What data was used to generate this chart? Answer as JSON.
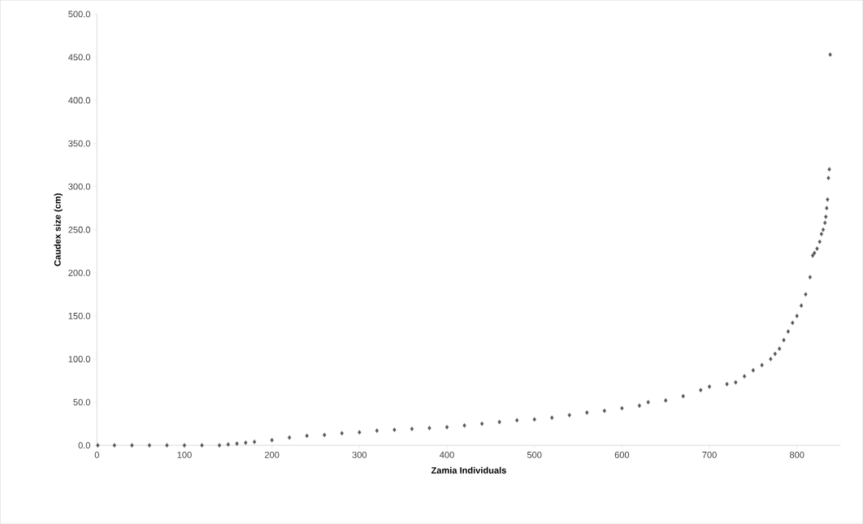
{
  "chart_data": {
    "type": "scatter",
    "xlabel": "Zamia Individuals",
    "ylabel": "Caudex size (cm)",
    "xlim": [
      0,
      850
    ],
    "xticks": [
      0,
      100,
      200,
      300,
      400,
      500,
      600,
      700,
      800
    ],
    "ylim": [
      0,
      500
    ],
    "yticks": [
      {
        "value": 0,
        "label": "0.0"
      },
      {
        "value": 50,
        "label": "50.0"
      },
      {
        "value": 100,
        "label": "100.0"
      },
      {
        "value": 150,
        "label": "150.0"
      },
      {
        "value": 200,
        "label": "200.0"
      },
      {
        "value": 250,
        "label": "250.0"
      },
      {
        "value": 300,
        "label": "300.0"
      },
      {
        "value": 350,
        "label": "350.0"
      },
      {
        "value": 400,
        "label": "400.0"
      },
      {
        "value": 450,
        "label": "450.0"
      },
      {
        "value": 500,
        "label": "500.0"
      }
    ],
    "marker": "diamond",
    "grid": false,
    "series": [
      {
        "color": "#595959",
        "x": [
          1,
          20,
          40,
          60,
          80,
          100,
          120,
          140,
          150,
          160,
          170,
          180,
          200,
          220,
          240,
          260,
          280,
          300,
          320,
          340,
          360,
          380,
          400,
          420,
          440,
          460,
          480,
          500,
          520,
          540,
          560,
          580,
          600,
          620,
          630,
          650,
          670,
          690,
          700,
          720,
          730,
          740,
          750,
          760,
          770,
          775,
          780,
          785,
          790,
          795,
          800,
          805,
          810,
          815,
          818,
          820,
          823,
          826,
          828,
          830,
          832,
          833,
          834,
          835,
          836,
          837,
          838
        ],
        "values": [
          0,
          0,
          0,
          0,
          0,
          0,
          0,
          0,
          1,
          2,
          3,
          4,
          6,
          9,
          11,
          12,
          14,
          15,
          17,
          18,
          19,
          20,
          21,
          23,
          25,
          27,
          29,
          30,
          32,
          35,
          38,
          40,
          43,
          46,
          50,
          52,
          57,
          64,
          68,
          71,
          73,
          80,
          87,
          93,
          100,
          106,
          112,
          122,
          132,
          142,
          150,
          162,
          175,
          195,
          220,
          223,
          228,
          236,
          245,
          250,
          258,
          265,
          275,
          285,
          310,
          320,
          453
        ]
      }
    ]
  }
}
